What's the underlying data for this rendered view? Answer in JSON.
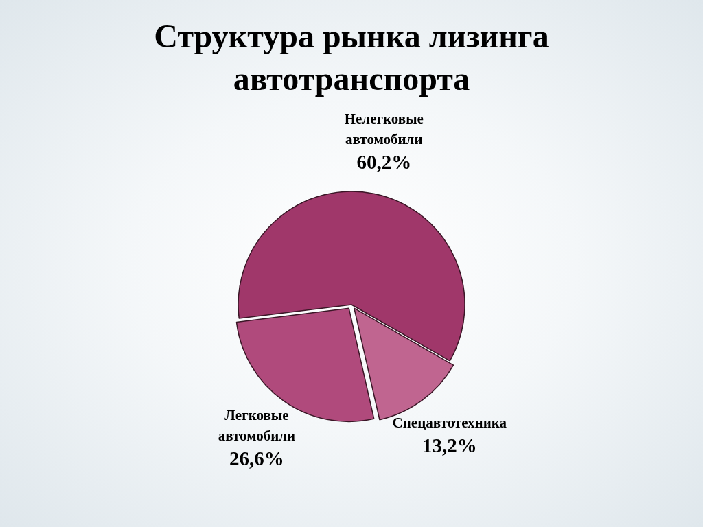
{
  "chart_data": {
    "type": "pie",
    "title": "Структура рынка лизинга автотранспорта",
    "categories": [
      "Нелегковые автомобили",
      "Спецавтотехника",
      "Легковые автомобили"
    ],
    "values": [
      60.2,
      13.2,
      26.6
    ],
    "value_labels": [
      "60,2%",
      "13,2%",
      "26,6%"
    ],
    "colors": [
      "#a0376a",
      "#c06590",
      "#b04a7c"
    ]
  }
}
